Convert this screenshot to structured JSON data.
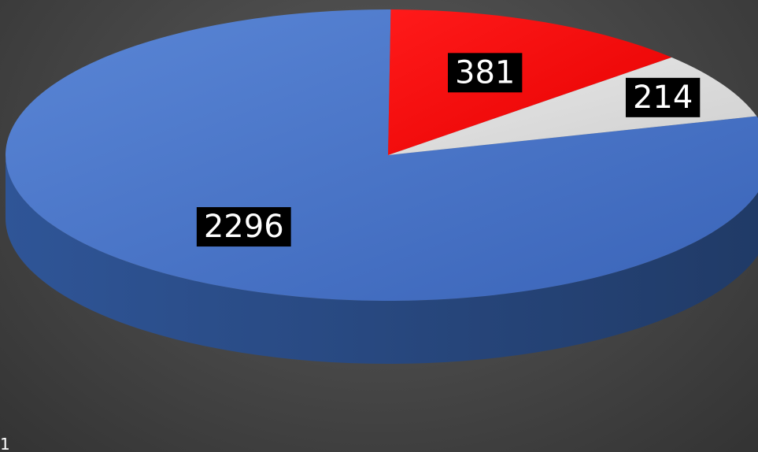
{
  "chart_data": {
    "type": "pie",
    "title": "",
    "slices": [
      {
        "value": 2296,
        "label": "2296",
        "color": "#4472c4"
      },
      {
        "value": 381,
        "label": "381",
        "color": "#ff0000"
      },
      {
        "value": 214,
        "label": "214",
        "color": "#d9d9d9"
      }
    ],
    "legend": "none",
    "style": "3d"
  },
  "corner_text": "1"
}
